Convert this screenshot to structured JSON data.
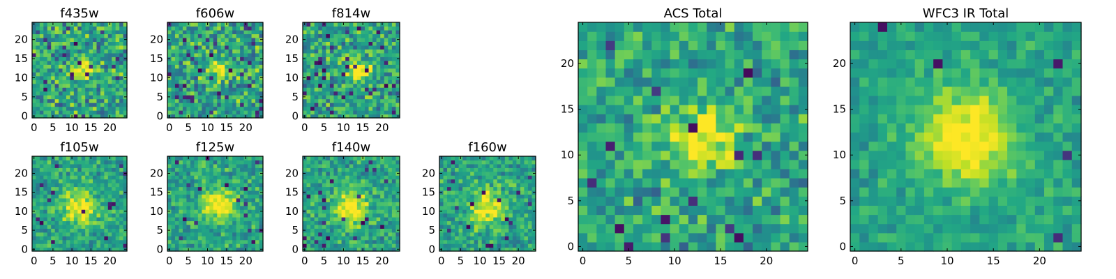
{
  "figure": {
    "colormap": "viridis",
    "tick_color": "#000000",
    "frame_color": "#000000"
  },
  "chart_data": [
    {
      "id": "f435w",
      "type": "heatmap",
      "title": "f435w",
      "xlim": [
        0,
        25
      ],
      "ylim": [
        0,
        25
      ],
      "xticks": [
        0,
        5,
        10,
        15,
        20
      ],
      "yticks": [
        0,
        5,
        10,
        15,
        20
      ],
      "tick_labels_x": [
        "0",
        "5",
        "10",
        "15",
        "20"
      ],
      "tick_labels_y": [
        "0",
        "5",
        "10",
        "15",
        "20"
      ],
      "grid_size": 25,
      "source_center": [
        13,
        12
      ],
      "source_width": 2.2,
      "source_amplitude": 0.35,
      "noise_level": 0.48,
      "seed": 435,
      "dark_pixel_fraction": 0.04
    },
    {
      "id": "f606w",
      "type": "heatmap",
      "title": "f606w",
      "xlim": [
        0,
        25
      ],
      "ylim": [
        0,
        25
      ],
      "xticks": [
        0,
        5,
        10,
        15,
        20
      ],
      "yticks": [
        0,
        5,
        10,
        15,
        20
      ],
      "tick_labels_x": [
        "0",
        "5",
        "10",
        "15",
        "20"
      ],
      "tick_labels_y": [
        "0",
        "5",
        "10",
        "15",
        "20"
      ],
      "grid_size": 25,
      "source_center": [
        13,
        12
      ],
      "source_width": 2.2,
      "source_amplitude": 0.4,
      "noise_level": 0.46,
      "seed": 606,
      "dark_pixel_fraction": 0.05
    },
    {
      "id": "f814w",
      "type": "heatmap",
      "title": "f814w",
      "xlim": [
        0,
        25
      ],
      "ylim": [
        0,
        25
      ],
      "xticks": [
        0,
        5,
        10,
        15,
        20
      ],
      "yticks": [
        0,
        5,
        10,
        15,
        20
      ],
      "tick_labels_x": [
        "0",
        "5",
        "10",
        "15",
        "20"
      ],
      "tick_labels_y": [
        "0",
        "5",
        "10",
        "15",
        "20"
      ],
      "grid_size": 25,
      "source_center": [
        14,
        12
      ],
      "source_width": 2.2,
      "source_amplitude": 0.45,
      "noise_level": 0.45,
      "seed": 814,
      "dark_pixel_fraction": 0.05
    },
    {
      "id": "f105w",
      "type": "heatmap",
      "title": "f105w",
      "xlim": [
        0,
        25
      ],
      "ylim": [
        0,
        25
      ],
      "xticks": [
        0,
        5,
        10,
        15,
        20
      ],
      "yticks": [
        0,
        5,
        10,
        15,
        20
      ],
      "tick_labels_x": [
        "0",
        "5",
        "10",
        "15",
        "20"
      ],
      "tick_labels_y": [
        "0",
        "5",
        "10",
        "15",
        "20"
      ],
      "grid_size": 25,
      "source_center": [
        12,
        11
      ],
      "source_width": 3.2,
      "source_amplitude": 0.45,
      "noise_level": 0.32,
      "seed": 105,
      "dark_pixel_fraction": 0.02
    },
    {
      "id": "f125w",
      "type": "heatmap",
      "title": "f125w",
      "xlim": [
        0,
        25
      ],
      "ylim": [
        0,
        25
      ],
      "xticks": [
        0,
        5,
        10,
        15,
        20
      ],
      "yticks": [
        0,
        5,
        10,
        15,
        20
      ],
      "tick_labels_x": [
        "0",
        "5",
        "10",
        "15",
        "20"
      ],
      "tick_labels_y": [
        "0",
        "5",
        "10",
        "15",
        "20"
      ],
      "grid_size": 25,
      "source_center": [
        13,
        12
      ],
      "source_width": 3.2,
      "source_amplitude": 0.45,
      "noise_level": 0.32,
      "seed": 125,
      "dark_pixel_fraction": 0.03
    },
    {
      "id": "f140w",
      "type": "heatmap",
      "title": "f140w",
      "xlim": [
        0,
        25
      ],
      "ylim": [
        0,
        25
      ],
      "xticks": [
        0,
        5,
        10,
        15,
        20
      ],
      "yticks": [
        0,
        5,
        10,
        15,
        20
      ],
      "tick_labels_x": [
        "0",
        "5",
        "10",
        "15",
        "20"
      ],
      "tick_labels_y": [
        "0",
        "5",
        "10",
        "15",
        "20"
      ],
      "grid_size": 25,
      "source_center": [
        12,
        11
      ],
      "source_width": 3.2,
      "source_amplitude": 0.45,
      "noise_level": 0.33,
      "seed": 140,
      "dark_pixel_fraction": 0.03
    },
    {
      "id": "f160w",
      "type": "heatmap",
      "title": "f160w",
      "xlim": [
        0,
        25
      ],
      "ylim": [
        0,
        25
      ],
      "xticks": [
        0,
        5,
        10,
        15,
        20
      ],
      "yticks": [
        0,
        5,
        10,
        15,
        20
      ],
      "tick_labels_x": [
        "0",
        "5",
        "10",
        "15",
        "20"
      ],
      "tick_labels_y": [
        "0",
        "5",
        "10",
        "15",
        "20"
      ],
      "grid_size": 25,
      "source_center": [
        12,
        11
      ],
      "source_width": 3.2,
      "source_amplitude": 0.45,
      "noise_level": 0.33,
      "seed": 160,
      "dark_pixel_fraction": 0.03
    },
    {
      "id": "acs_total",
      "type": "heatmap",
      "title": "ACS Total",
      "xlim": [
        0,
        25
      ],
      "ylim": [
        0,
        25
      ],
      "xticks": [
        0,
        5,
        10,
        15,
        20
      ],
      "yticks": [
        0,
        5,
        10,
        15,
        20
      ],
      "tick_labels_x": [
        "0",
        "5",
        "10",
        "15",
        "20"
      ],
      "tick_labels_y": [
        "0",
        "5",
        "10",
        "15",
        "20"
      ],
      "grid_size": 25,
      "source_center": [
        13,
        12
      ],
      "source_width": 2.4,
      "source_amplitude": 0.5,
      "noise_level": 0.38,
      "seed": 901,
      "dark_pixel_fraction": 0.035
    },
    {
      "id": "wfc3_ir_total",
      "type": "heatmap",
      "title": "WFC3 IR Total",
      "xlim": [
        0,
        25
      ],
      "ylim": [
        0,
        25
      ],
      "xticks": [
        0,
        5,
        10,
        15,
        20
      ],
      "yticks": [
        0,
        5,
        10,
        15,
        20
      ],
      "tick_labels_x": [
        "0",
        "5",
        "10",
        "15",
        "20"
      ],
      "tick_labels_y": [
        "0",
        "5",
        "10",
        "15",
        "20"
      ],
      "grid_size": 25,
      "source_center": [
        12,
        12
      ],
      "source_width": 3.5,
      "source_amplitude": 0.5,
      "noise_level": 0.22,
      "seed": 777,
      "dark_pixel_fraction": 0.01
    }
  ]
}
